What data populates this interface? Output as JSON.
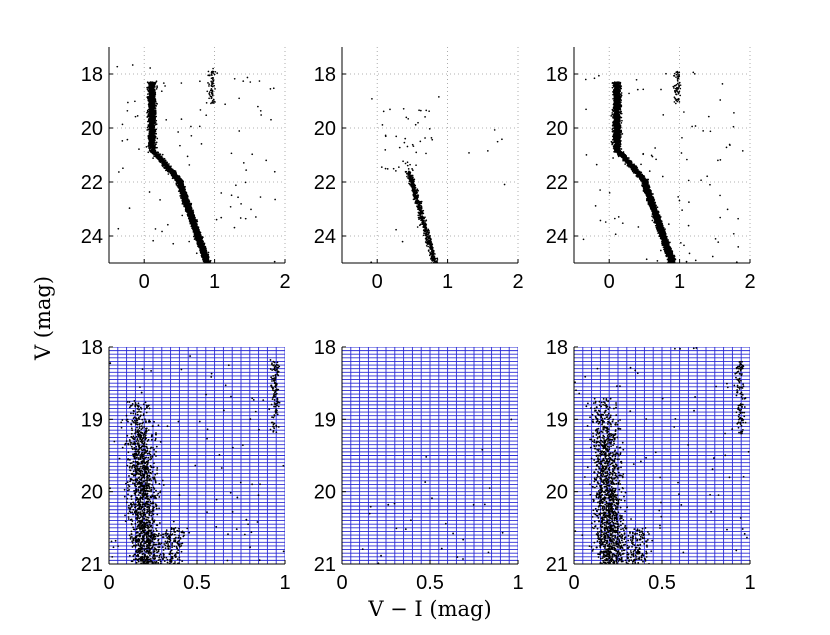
{
  "figure": {
    "xlabel": "V − I (mag)",
    "ylabel": "V (mag)"
  },
  "chart_data": [
    {
      "type": "scatter",
      "panel": "top-left",
      "xlim": [
        -0.5,
        2
      ],
      "ylim": [
        25,
        17
      ],
      "y_inverted": true,
      "xticks": [
        0,
        1,
        2
      ],
      "yticks": [
        18,
        20,
        22,
        24
      ],
      "grid": "dotted",
      "bin_grid": false,
      "populations": [
        {
          "kind": "main-sequence-turnoff",
          "count": 1400,
          "x_range": [
            0.02,
            0.2
          ],
          "y_range": [
            18.3,
            20.9
          ]
        },
        {
          "kind": "subgiant-branch",
          "count": 700,
          "x_start": 0.15,
          "x_end": 0.52,
          "y_start": 20.9,
          "y_end": 22.0
        },
        {
          "kind": "lower-main-sequence",
          "count": 3000,
          "x_start": 0.5,
          "x_end": 0.9,
          "y_start": 22.0,
          "y_end": 25.0
        },
        {
          "kind": "red-giant-clump",
          "count": 70,
          "x_range": [
            0.88,
            1.05
          ],
          "y_range": [
            17.9,
            19.1
          ]
        },
        {
          "kind": "field",
          "count": 90,
          "x_range": [
            -0.4,
            1.9
          ],
          "y_range": [
            17.6,
            25.0
          ]
        }
      ]
    },
    {
      "type": "scatter",
      "panel": "top-middle",
      "xlim": [
        -0.5,
        2
      ],
      "ylim": [
        25,
        17
      ],
      "y_inverted": true,
      "xticks": [
        0,
        1,
        2
      ],
      "yticks": [
        18,
        20,
        22,
        24
      ],
      "grid": "dotted",
      "bin_grid": false,
      "populations": [
        {
          "kind": "sparse-upper",
          "count": 40,
          "x_range": [
            0.05,
            0.8
          ],
          "y_range": [
            19.3,
            21.6
          ]
        },
        {
          "kind": "main-sequence",
          "count": 600,
          "x_start": 0.45,
          "x_end": 0.82,
          "y_start": 21.6,
          "y_end": 25.0
        },
        {
          "kind": "field",
          "count": 15,
          "x_range": [
            -0.2,
            1.9
          ],
          "y_range": [
            18.5,
            25.0
          ]
        }
      ]
    },
    {
      "type": "scatter",
      "panel": "top-right",
      "xlim": [
        -0.5,
        2
      ],
      "ylim": [
        25,
        17
      ],
      "y_inverted": true,
      "xticks": [
        0,
        1,
        2
      ],
      "yticks": [
        18,
        20,
        22,
        24
      ],
      "grid": "dotted",
      "bin_grid": false,
      "populations": [
        {
          "kind": "main-sequence-turnoff",
          "count": 1400,
          "x_range": [
            0.02,
            0.2
          ],
          "y_range": [
            18.3,
            20.9
          ]
        },
        {
          "kind": "subgiant-branch",
          "count": 700,
          "x_start": 0.15,
          "x_end": 0.52,
          "y_start": 20.9,
          "y_end": 22.0
        },
        {
          "kind": "lower-main-sequence",
          "count": 3000,
          "x_start": 0.5,
          "x_end": 0.9,
          "y_start": 22.0,
          "y_end": 25.0
        },
        {
          "kind": "red-giant-clump",
          "count": 70,
          "x_range": [
            0.88,
            1.05
          ],
          "y_range": [
            17.9,
            19.1
          ]
        },
        {
          "kind": "field",
          "count": 90,
          "x_range": [
            -0.4,
            1.9
          ],
          "y_range": [
            17.6,
            25.0
          ]
        }
      ]
    },
    {
      "type": "scatter",
      "panel": "bottom-left",
      "xlim": [
        0,
        1
      ],
      "ylim": [
        21,
        18
      ],
      "y_inverted": true,
      "xticks": [
        0,
        0.5,
        1
      ],
      "yticks": [
        18,
        19,
        20,
        21
      ],
      "grid": "none",
      "bin_grid": true,
      "bin_grid_color": "#2b2bd6",
      "bin_x_step": 0.05,
      "bin_y_step": 0.05,
      "populations": [
        {
          "kind": "turnoff-dense",
          "count": 1300,
          "x_range": [
            0.03,
            0.3
          ],
          "y_range": [
            18.7,
            21.0
          ]
        },
        {
          "kind": "turnoff-tail",
          "count": 160,
          "x_range": [
            0.2,
            0.5
          ],
          "y_range": [
            20.5,
            21.0
          ]
        },
        {
          "kind": "red-giant-clump",
          "count": 120,
          "x_range": [
            0.9,
            0.99
          ],
          "y_range": [
            18.2,
            19.2
          ]
        },
        {
          "kind": "field",
          "count": 80,
          "x_range": [
            0.0,
            1.0
          ],
          "y_range": [
            18.0,
            21.0
          ]
        }
      ]
    },
    {
      "type": "scatter",
      "panel": "bottom-middle",
      "xlim": [
        0,
        1
      ],
      "ylim": [
        21,
        18
      ],
      "y_inverted": true,
      "xticks": [
        0,
        0.5,
        1
      ],
      "yticks": [
        18,
        19,
        20,
        21
      ],
      "grid": "none",
      "bin_grid": true,
      "bin_grid_color": "#2b2bd6",
      "bin_x_step": 0.05,
      "bin_y_step": 0.05,
      "populations": [
        {
          "kind": "sparse",
          "count": 20,
          "x_range": [
            0.1,
            0.95
          ],
          "y_range": [
            19.5,
            21.0
          ]
        },
        {
          "kind": "field",
          "count": 6,
          "x_range": [
            0.0,
            1.0
          ],
          "y_range": [
            18.5,
            21.0
          ]
        }
      ]
    },
    {
      "type": "scatter",
      "panel": "bottom-right",
      "xlim": [
        0,
        1
      ],
      "ylim": [
        21,
        18
      ],
      "y_inverted": true,
      "xticks": [
        0,
        0.5,
        1
      ],
      "yticks": [
        18,
        19,
        20,
        21
      ],
      "grid": "none",
      "bin_grid": true,
      "bin_grid_color": "#2b2bd6",
      "bin_x_step": 0.05,
      "bin_y_step": 0.05,
      "populations": [
        {
          "kind": "turnoff-dense",
          "count": 1300,
          "x_range": [
            0.03,
            0.3
          ],
          "y_range": [
            18.7,
            21.0
          ]
        },
        {
          "kind": "turnoff-tail",
          "count": 160,
          "x_range": [
            0.2,
            0.5
          ],
          "y_range": [
            20.5,
            21.0
          ]
        },
        {
          "kind": "red-giant-clump",
          "count": 120,
          "x_range": [
            0.9,
            0.99
          ],
          "y_range": [
            18.2,
            19.2
          ]
        },
        {
          "kind": "field",
          "count": 80,
          "x_range": [
            0.0,
            1.0
          ],
          "y_range": [
            18.0,
            21.0
          ]
        }
      ]
    }
  ]
}
